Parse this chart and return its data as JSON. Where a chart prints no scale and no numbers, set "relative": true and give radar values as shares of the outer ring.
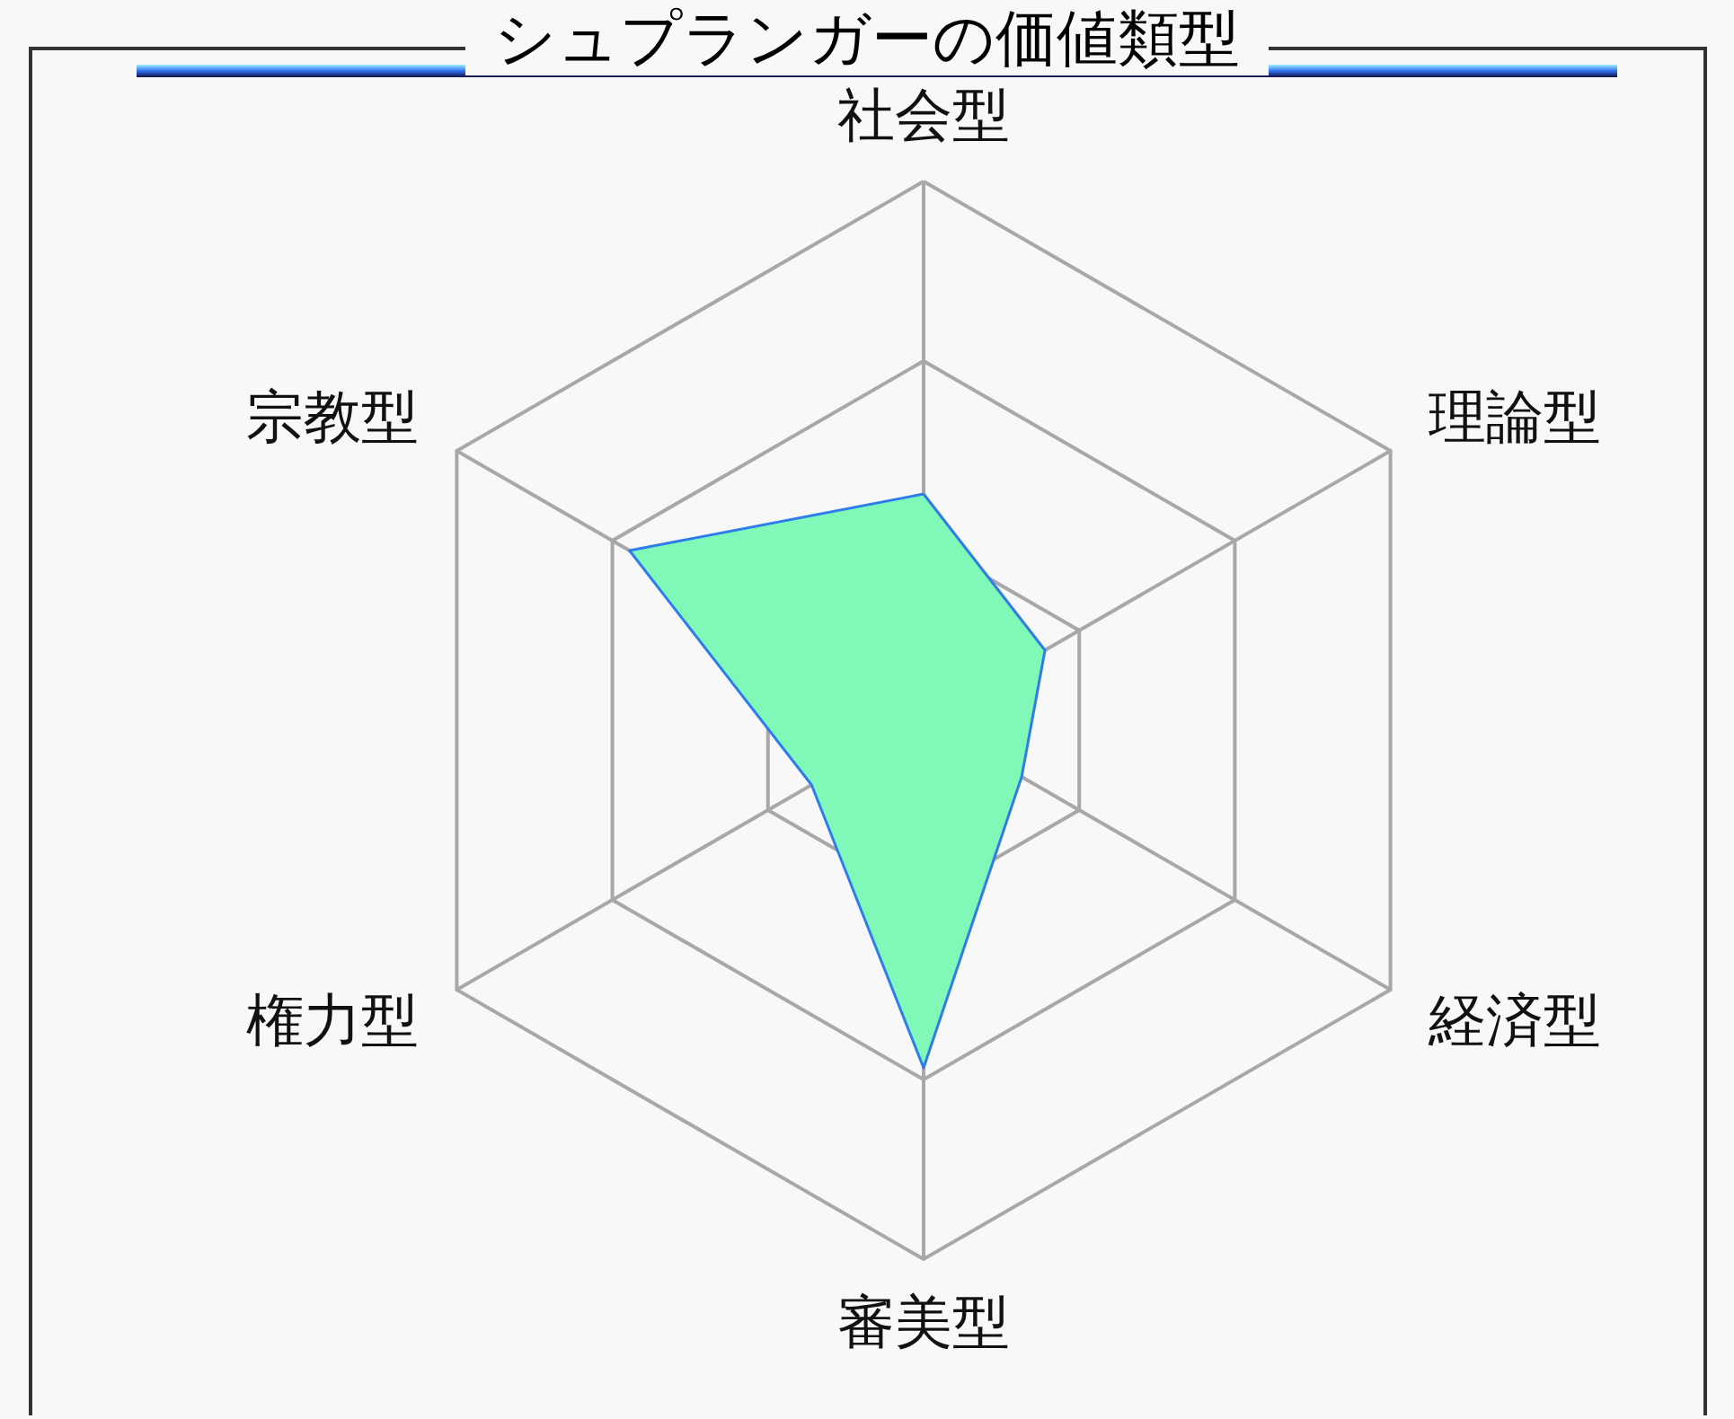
{
  "chart_data": {
    "type": "radar",
    "title": "シュプランガーの価値類型",
    "categories": [
      "社会型",
      "理論型",
      "経済型",
      "審美型",
      "権力型",
      "宗教型"
    ],
    "relative": true,
    "grid": true,
    "series": [
      {
        "color": "#80f8b8",
        "values": [
          0.42,
          0.26,
          0.21,
          0.645,
          0.24,
          0.63
        ]
      }
    ]
  }
}
